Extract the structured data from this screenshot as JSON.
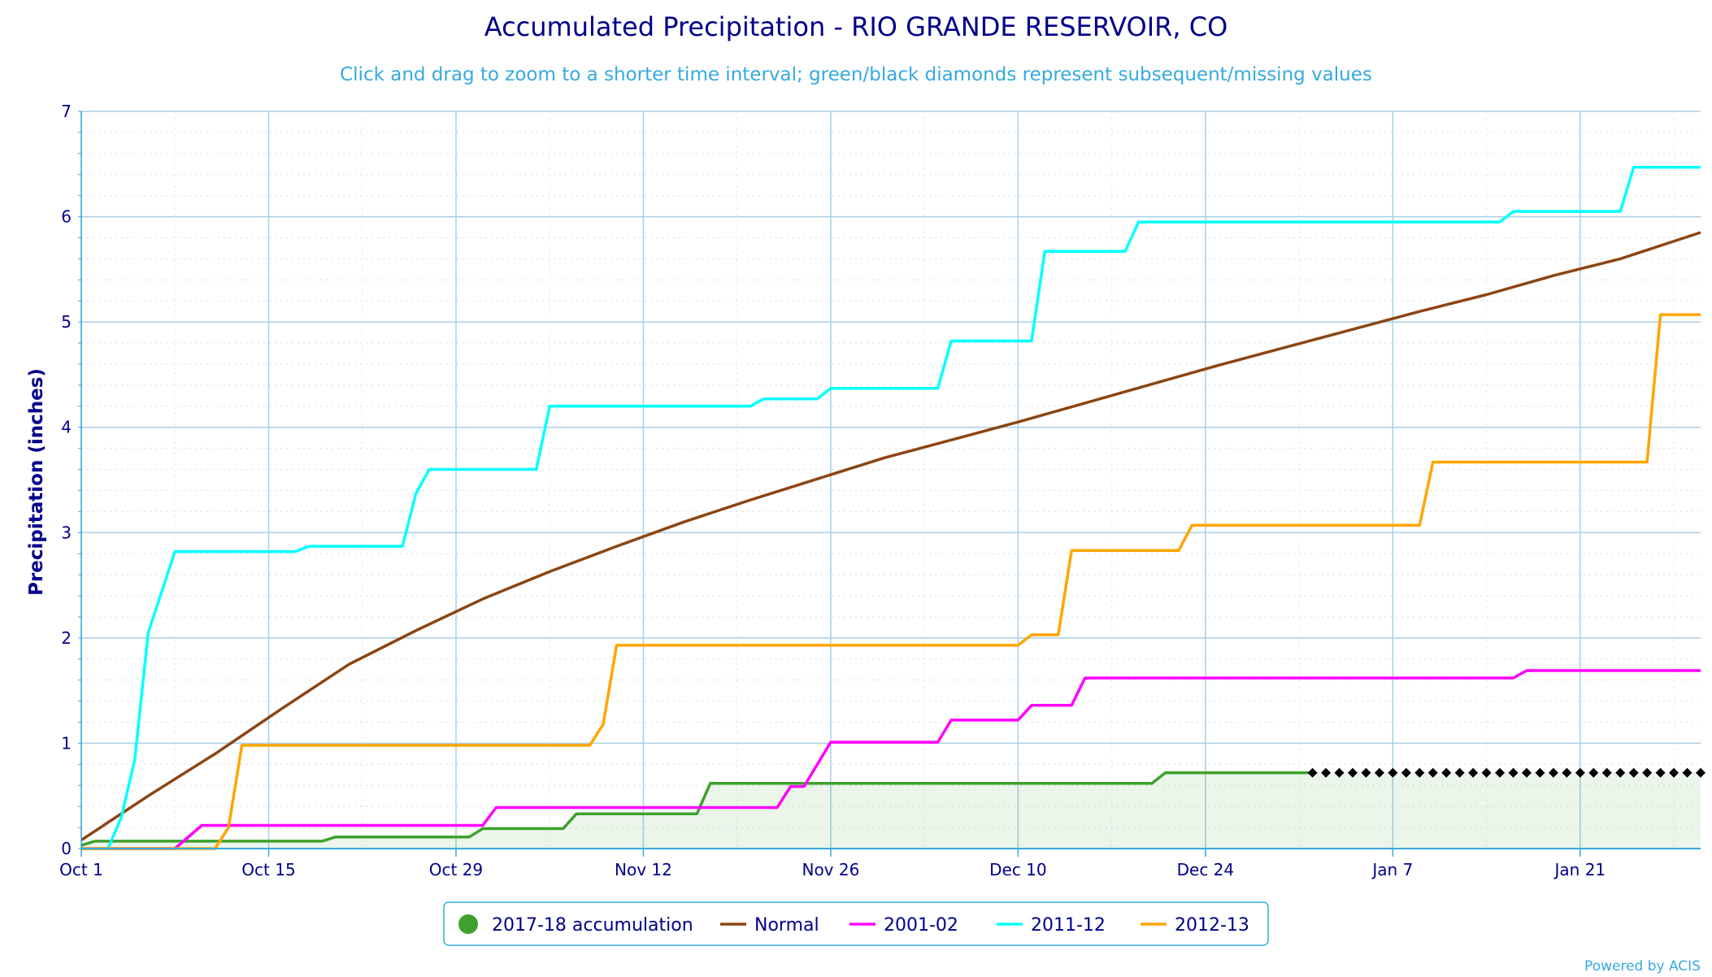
{
  "chart_data": {
    "type": "line",
    "title": "Accumulated Precipitation - RIO GRANDE RESERVOIR, CO",
    "subtitle": "Click and drag to zoom to a shorter time interval; green/black diamonds represent subsequent/missing values",
    "ylabel": "Precipitation (inches)",
    "xlabel": "",
    "ylim": [
      0,
      7
    ],
    "yticks": [
      0,
      1,
      2,
      3,
      4,
      5,
      6,
      7
    ],
    "xlim": [
      0,
      121
    ],
    "xticks": [
      {
        "day": 0,
        "label": "Oct 1"
      },
      {
        "day": 14,
        "label": "Oct 15"
      },
      {
        "day": 28,
        "label": "Oct 29"
      },
      {
        "day": 42,
        "label": "Nov 12"
      },
      {
        "day": 56,
        "label": "Nov 26"
      },
      {
        "day": 70,
        "label": "Dec 10"
      },
      {
        "day": 84,
        "label": "Dec 24"
      },
      {
        "day": 98,
        "label": "Jan 7"
      },
      {
        "day": 112,
        "label": "Jan 21"
      }
    ],
    "grid": true,
    "legend_position": "bottom",
    "credit": "Powered by ACIS",
    "series": [
      {
        "name": "2017-18 accumulation",
        "color": "#3ea12d",
        "area": true,
        "marker": "circle",
        "points": [
          [
            0,
            0.03
          ],
          [
            1,
            0.07
          ],
          [
            18,
            0.07
          ],
          [
            19,
            0.11
          ],
          [
            29,
            0.11
          ],
          [
            30,
            0.19
          ],
          [
            36,
            0.19
          ],
          [
            37,
            0.33
          ],
          [
            46,
            0.33
          ],
          [
            47,
            0.62
          ],
          [
            80,
            0.62
          ],
          [
            81,
            0.72
          ],
          [
            92,
            0.72
          ]
        ]
      },
      {
        "name": "Normal",
        "color": "#8b4513",
        "marker": "line",
        "points": [
          [
            0,
            0.08
          ],
          [
            5,
            0.5
          ],
          [
            10,
            0.9
          ],
          [
            15,
            1.33
          ],
          [
            20,
            1.75
          ],
          [
            25,
            2.07
          ],
          [
            30,
            2.37
          ],
          [
            35,
            2.63
          ],
          [
            40,
            2.87
          ],
          [
            45,
            3.1
          ],
          [
            50,
            3.31
          ],
          [
            55,
            3.51
          ],
          [
            60,
            3.71
          ],
          [
            65,
            3.88
          ],
          [
            70,
            4.05
          ],
          [
            75,
            4.23
          ],
          [
            80,
            4.41
          ],
          [
            85,
            4.59
          ],
          [
            90,
            4.76
          ],
          [
            95,
            4.93
          ],
          [
            100,
            5.1
          ],
          [
            105,
            5.26
          ],
          [
            110,
            5.44
          ],
          [
            115,
            5.6
          ],
          [
            121,
            5.85
          ]
        ]
      },
      {
        "name": "2001-02",
        "color": "#ff00ff",
        "marker": "line",
        "points": [
          [
            0,
            0
          ],
          [
            7,
            0
          ],
          [
            9,
            0.22
          ],
          [
            30,
            0.22
          ],
          [
            31,
            0.39
          ],
          [
            52,
            0.39
          ],
          [
            53,
            0.59
          ],
          [
            54,
            0.59
          ],
          [
            56,
            1.01
          ],
          [
            64,
            1.01
          ],
          [
            65,
            1.22
          ],
          [
            70,
            1.22
          ],
          [
            71,
            1.36
          ],
          [
            74,
            1.36
          ],
          [
            75,
            1.62
          ],
          [
            107,
            1.62
          ],
          [
            108,
            1.69
          ],
          [
            121,
            1.69
          ]
        ]
      },
      {
        "name": "2011-12",
        "color": "#00ffff",
        "marker": "line",
        "points": [
          [
            0,
            0
          ],
          [
            2,
            0
          ],
          [
            3,
            0.3
          ],
          [
            4,
            0.85
          ],
          [
            5,
            2.05
          ],
          [
            7,
            2.82
          ],
          [
            16,
            2.82
          ],
          [
            17,
            2.87
          ],
          [
            24,
            2.87
          ],
          [
            25,
            3.37
          ],
          [
            26,
            3.6
          ],
          [
            34,
            3.6
          ],
          [
            35,
            4.2
          ],
          [
            50,
            4.2
          ],
          [
            51,
            4.27
          ],
          [
            55,
            4.27
          ],
          [
            56,
            4.37
          ],
          [
            64,
            4.37
          ],
          [
            65,
            4.82
          ],
          [
            71,
            4.82
          ],
          [
            72,
            5.67
          ],
          [
            78,
            5.67
          ],
          [
            79,
            5.95
          ],
          [
            106,
            5.95
          ],
          [
            107,
            6.05
          ],
          [
            115,
            6.05
          ],
          [
            116,
            6.47
          ],
          [
            121,
            6.47
          ]
        ]
      },
      {
        "name": "2012-13",
        "color": "#ffa500",
        "marker": "line",
        "points": [
          [
            0,
            0
          ],
          [
            10,
            0
          ],
          [
            11,
            0.2
          ],
          [
            12,
            0.98
          ],
          [
            38,
            0.98
          ],
          [
            39,
            1.18
          ],
          [
            40,
            1.93
          ],
          [
            70,
            1.93
          ],
          [
            71,
            2.03
          ],
          [
            73,
            2.03
          ],
          [
            74,
            2.83
          ],
          [
            82,
            2.83
          ],
          [
            83,
            3.07
          ],
          [
            100,
            3.07
          ],
          [
            101,
            3.67
          ],
          [
            117,
            3.67
          ],
          [
            118,
            5.07
          ],
          [
            121,
            5.07
          ]
        ]
      }
    ],
    "missing_markers": {
      "color": "#000000",
      "from_day": 92,
      "to_day": 121,
      "value": 0.72
    }
  }
}
